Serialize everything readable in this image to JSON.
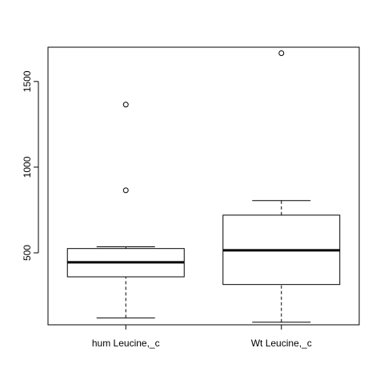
{
  "chart_data": {
    "type": "boxplot",
    "title": "",
    "xlabel": "",
    "ylabel": "",
    "ylim": [
      80,
      1700
    ],
    "yticks": [
      500,
      1000,
      1500
    ],
    "ytick_labels": [
      "500",
      "1000",
      "1500"
    ],
    "grid": false,
    "categories": [
      "hum Leucine,_c",
      "Wt Leucine,_c"
    ],
    "boxes": [
      {
        "whisker_low": 120,
        "q1": 360,
        "median": 445,
        "q3": 525,
        "whisker_high": 535,
        "outliers": [
          865,
          1365
        ]
      },
      {
        "whisker_low": 95,
        "q1": 315,
        "median": 515,
        "q3": 720,
        "whisker_high": 805,
        "outliers": [
          1665
        ]
      }
    ]
  }
}
